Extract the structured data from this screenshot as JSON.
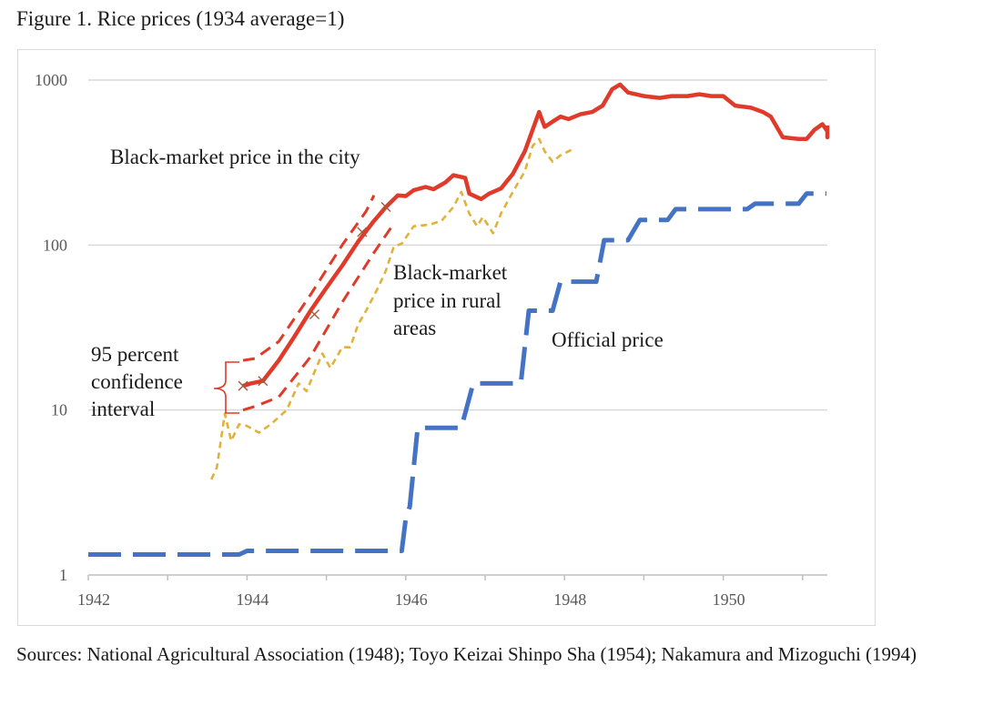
{
  "figure_title": "Figure 1. Rice prices (1934 average=1)",
  "sources": "Sources: National Agricultural Association (1948); Toyo Keizai Shinpo Sha (1954); Nakamura and Mizoguchi (1994)",
  "colors": {
    "city": "#e03a2a",
    "rural": "#e0b23a",
    "official": "#4472c4",
    "grid": "#d9d9d9",
    "axis": "#bfbfbf",
    "tick_text": "#595959"
  },
  "chart_data": {
    "type": "line",
    "y_scale": "log",
    "ylim": [
      1,
      1000
    ],
    "xlim": [
      1942,
      1951.3
    ],
    "y_ticks": [
      {
        "v": 1,
        "label": "1"
      },
      {
        "v": 10,
        "label": "10"
      },
      {
        "v": 100,
        "label": "100"
      },
      {
        "v": 1000,
        "label": "1000"
      }
    ],
    "x_ticks": [
      {
        "v": 1942,
        "label": "1942"
      },
      {
        "v": 1944,
        "label": "1944"
      },
      {
        "v": 1946,
        "label": "1946"
      },
      {
        "v": 1948,
        "label": "1948"
      },
      {
        "v": 1950,
        "label": "1950"
      }
    ],
    "grid": "horizontal",
    "legend": "none",
    "series": [
      {
        "name": "Black-market price in the city",
        "style": "solid",
        "points": [
          [
            1943.95,
            14
          ],
          [
            1944.05,
            14.5
          ],
          [
            1944.2,
            15
          ],
          [
            1944.4,
            20
          ],
          [
            1944.6,
            28
          ],
          [
            1944.8,
            40
          ],
          [
            1945.0,
            55
          ],
          [
            1945.2,
            75
          ],
          [
            1945.4,
            105
          ],
          [
            1945.6,
            140
          ],
          [
            1945.75,
            170
          ],
          [
            1945.9,
            200
          ],
          [
            1946.0,
            198
          ],
          [
            1946.1,
            215
          ],
          [
            1946.25,
            225
          ],
          [
            1946.35,
            218
          ],
          [
            1946.5,
            240
          ],
          [
            1946.6,
            265
          ],
          [
            1946.75,
            255
          ],
          [
            1946.8,
            205
          ],
          [
            1946.95,
            190
          ],
          [
            1947.05,
            205
          ],
          [
            1947.2,
            220
          ],
          [
            1947.35,
            270
          ],
          [
            1947.5,
            370
          ],
          [
            1947.68,
            640
          ],
          [
            1947.75,
            520
          ],
          [
            1947.85,
            560
          ],
          [
            1947.95,
            600
          ],
          [
            1948.05,
            580
          ],
          [
            1948.2,
            620
          ],
          [
            1948.35,
            640
          ],
          [
            1948.48,
            700
          ],
          [
            1948.6,
            880
          ],
          [
            1948.7,
            940
          ],
          [
            1948.8,
            840
          ],
          [
            1949.0,
            800
          ],
          [
            1949.2,
            780
          ],
          [
            1949.35,
            800
          ],
          [
            1949.55,
            800
          ],
          [
            1949.7,
            820
          ],
          [
            1949.85,
            800
          ],
          [
            1950.0,
            800
          ],
          [
            1950.15,
            700
          ],
          [
            1950.35,
            680
          ],
          [
            1950.5,
            640
          ],
          [
            1950.6,
            600
          ],
          [
            1950.75,
            450
          ],
          [
            1950.95,
            440
          ],
          [
            1951.05,
            440
          ],
          [
            1951.15,
            500
          ],
          [
            1951.25,
            540
          ],
          [
            1951.4,
            490
          ],
          [
            1951.5,
            470
          ],
          [
            1951.65,
            470
          ],
          [
            1951.75,
            450
          ],
          [
            1951.85,
            480
          ],
          [
            1951.9,
            530
          ],
          [
            1952.05,
            530
          ]
        ]
      },
      {
        "name": "95 percent confidence interval",
        "style": "dashed",
        "points": [
          [
            1943.95,
            20
          ],
          [
            1944.1,
            20.5
          ],
          [
            1944.4,
            26
          ],
          [
            1944.8,
            50
          ],
          [
            1945.2,
            100
          ],
          [
            1945.5,
            160
          ],
          [
            1945.6,
            200
          ]
        ]
      },
      {
        "name": "95 percent confidence interval",
        "style": "dashed",
        "points": [
          [
            1943.95,
            10
          ],
          [
            1944.1,
            10.5
          ],
          [
            1944.4,
            12
          ],
          [
            1944.8,
            21
          ],
          [
            1945.2,
            45
          ],
          [
            1945.6,
            90
          ],
          [
            1945.85,
            135
          ]
        ]
      },
      {
        "name": "Black-market price in rural areas",
        "style": "dashed",
        "points": [
          [
            1943.55,
            3.8
          ],
          [
            1943.62,
            4.5
          ],
          [
            1943.72,
            9.5
          ],
          [
            1943.8,
            6.5
          ],
          [
            1943.9,
            8.2
          ],
          [
            1944.0,
            8.0
          ],
          [
            1944.15,
            7.3
          ],
          [
            1944.3,
            8.2
          ],
          [
            1944.5,
            10.0
          ],
          [
            1944.65,
            14.5
          ],
          [
            1944.75,
            13.0
          ],
          [
            1944.85,
            17
          ],
          [
            1944.95,
            22
          ],
          [
            1945.05,
            18
          ],
          [
            1945.2,
            24
          ],
          [
            1945.3,
            24
          ],
          [
            1945.4,
            33
          ],
          [
            1945.5,
            40
          ],
          [
            1945.65,
            55
          ],
          [
            1945.75,
            70
          ],
          [
            1945.85,
            98
          ],
          [
            1945.95,
            102
          ],
          [
            1946.1,
            130
          ],
          [
            1946.3,
            133
          ],
          [
            1946.45,
            140
          ],
          [
            1946.6,
            170
          ],
          [
            1946.7,
            210
          ],
          [
            1946.8,
            155
          ],
          [
            1946.9,
            130
          ],
          [
            1946.97,
            148
          ],
          [
            1947.1,
            118
          ],
          [
            1947.2,
            155
          ],
          [
            1947.35,
            210
          ],
          [
            1947.5,
            280
          ],
          [
            1947.6,
            400
          ],
          [
            1947.68,
            440
          ],
          [
            1947.75,
            370
          ],
          [
            1947.85,
            320
          ],
          [
            1947.95,
            350
          ],
          [
            1948.1,
            380
          ]
        ]
      },
      {
        "name": "Official price",
        "style": "long-dash",
        "points": [
          [
            1942.0,
            1.33
          ],
          [
            1943.9,
            1.33
          ],
          [
            1944.0,
            1.4
          ],
          [
            1945.95,
            1.4
          ],
          [
            1946.0,
            2.2
          ],
          [
            1946.05,
            2.6
          ],
          [
            1946.15,
            7.8
          ],
          [
            1946.7,
            7.8
          ],
          [
            1946.85,
            14.5
          ],
          [
            1947.45,
            14.5
          ],
          [
            1947.55,
            40
          ],
          [
            1947.85,
            40
          ],
          [
            1947.95,
            60
          ],
          [
            1948.4,
            60
          ],
          [
            1948.5,
            107
          ],
          [
            1948.8,
            107
          ],
          [
            1948.95,
            142
          ],
          [
            1949.3,
            142
          ],
          [
            1949.4,
            165
          ],
          [
            1950.3,
            165
          ],
          [
            1950.4,
            178
          ],
          [
            1950.95,
            178
          ],
          [
            1951.05,
            205
          ],
          [
            1951.3,
            205
          ]
        ]
      }
    ],
    "annotations": {
      "city_label": "Black-market price in the city",
      "rural_label_lines": [
        "Black-market",
        "price in rural",
        "areas"
      ],
      "official_label": "Official price",
      "ci_label_lines": [
        "95 percent",
        "confidence",
        "interval"
      ]
    }
  }
}
